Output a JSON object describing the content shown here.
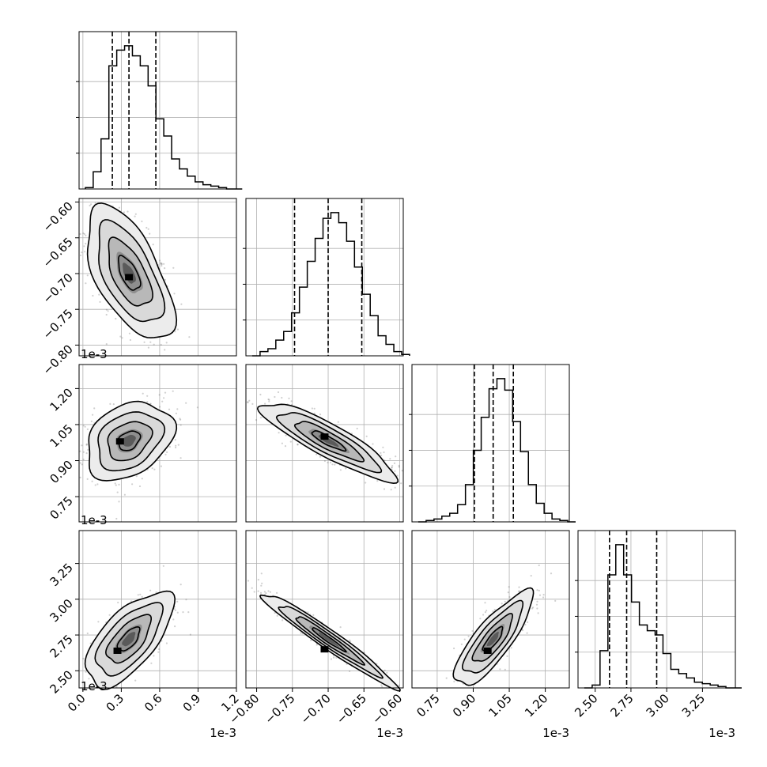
{
  "chart_data": {
    "type": "corner",
    "grid": true,
    "quantiles": [
      0.16,
      0.5,
      0.84
    ],
    "parameters": [
      {
        "id": "p1",
        "range": [
          -0.03,
          1.2
        ],
        "ticks": [
          0.0,
          0.3,
          0.6,
          0.9,
          1.2
        ],
        "tick_labels": [
          "0.0",
          "0.3",
          "0.6",
          "0.9",
          "1.2"
        ],
        "offset_text": "1e-3",
        "quantile_values": [
          0.23,
          0.36,
          0.57
        ],
        "hist_bin_width": 0.0613,
        "hist_values": [
          0.01,
          0.12,
          0.35,
          0.86,
          0.97,
          1.0,
          0.93,
          0.86,
          0.72,
          0.49,
          0.37,
          0.21,
          0.14,
          0.09,
          0.05,
          0.03,
          0.02,
          0.01,
          0.0,
          0.0
        ]
      },
      {
        "id": "p2",
        "range": [
          -0.815,
          -0.595
        ],
        "ticks": [
          -0.8,
          -0.75,
          -0.7,
          -0.65,
          -0.6
        ],
        "tick_labels": [
          "−0.80",
          "−0.75",
          "−0.70",
          "−0.65",
          "−0.60"
        ],
        "offset_text": "1e-3",
        "quantile_values": [
          -0.747,
          -0.7,
          -0.653
        ],
        "hist_bin_width": 0.011,
        "hist_values": [
          0.0,
          0.03,
          0.05,
          0.11,
          0.17,
          0.3,
          0.48,
          0.66,
          0.82,
          0.96,
          1.0,
          0.93,
          0.8,
          0.62,
          0.43,
          0.28,
          0.14,
          0.08,
          0.03,
          0.01
        ]
      },
      {
        "id": "p3",
        "range": [
          0.645,
          1.3
        ],
        "ticks": [
          0.75,
          0.9,
          1.05,
          1.2
        ],
        "tick_labels": [
          "0.75",
          "0.90",
          "1.05",
          "1.20"
        ],
        "offset_text": "1e-3",
        "quantile_values": [
          0.905,
          0.983,
          1.067
        ],
        "hist_bin_width": 0.03275,
        "hist_values": [
          0.0,
          0.01,
          0.02,
          0.04,
          0.06,
          0.12,
          0.26,
          0.5,
          0.73,
          0.93,
          1.0,
          0.92,
          0.7,
          0.49,
          0.26,
          0.13,
          0.06,
          0.02,
          0.01,
          0.0
        ]
      },
      {
        "id": "p4",
        "range": [
          2.38,
          3.48
        ],
        "ticks": [
          2.5,
          2.75,
          3.0,
          3.25
        ],
        "tick_labels": [
          "2.50",
          "2.75",
          "3.00",
          "3.25"
        ],
        "offset_text": "1e-3",
        "quantile_values": [
          2.6,
          2.72,
          2.93
        ],
        "hist_bin_width": 0.055,
        "hist_values": [
          0.0,
          0.02,
          0.26,
          0.79,
          1.0,
          0.79,
          0.6,
          0.44,
          0.4,
          0.37,
          0.24,
          0.13,
          0.1,
          0.07,
          0.04,
          0.03,
          0.02,
          0.01,
          0.0,
          0.0
        ]
      }
    ],
    "correlations": {
      "p1_p2": -0.6,
      "p1_p3": 0.3,
      "p2_p3": -0.88,
      "p1_p4": 0.65,
      "p2_p4": -0.97,
      "p3_p4": 0.82
    },
    "posterior_modes": {
      "p1_p2": [
        0.36,
        -0.705
      ],
      "p1_p3": [
        0.29,
        0.98
      ],
      "p2_p3": [
        -0.705,
        1.0
      ],
      "p1_p4": [
        0.27,
        2.64
      ],
      "p2_p4": [
        -0.705,
        2.65
      ],
      "p3_p4": [
        0.96,
        2.64
      ]
    }
  }
}
